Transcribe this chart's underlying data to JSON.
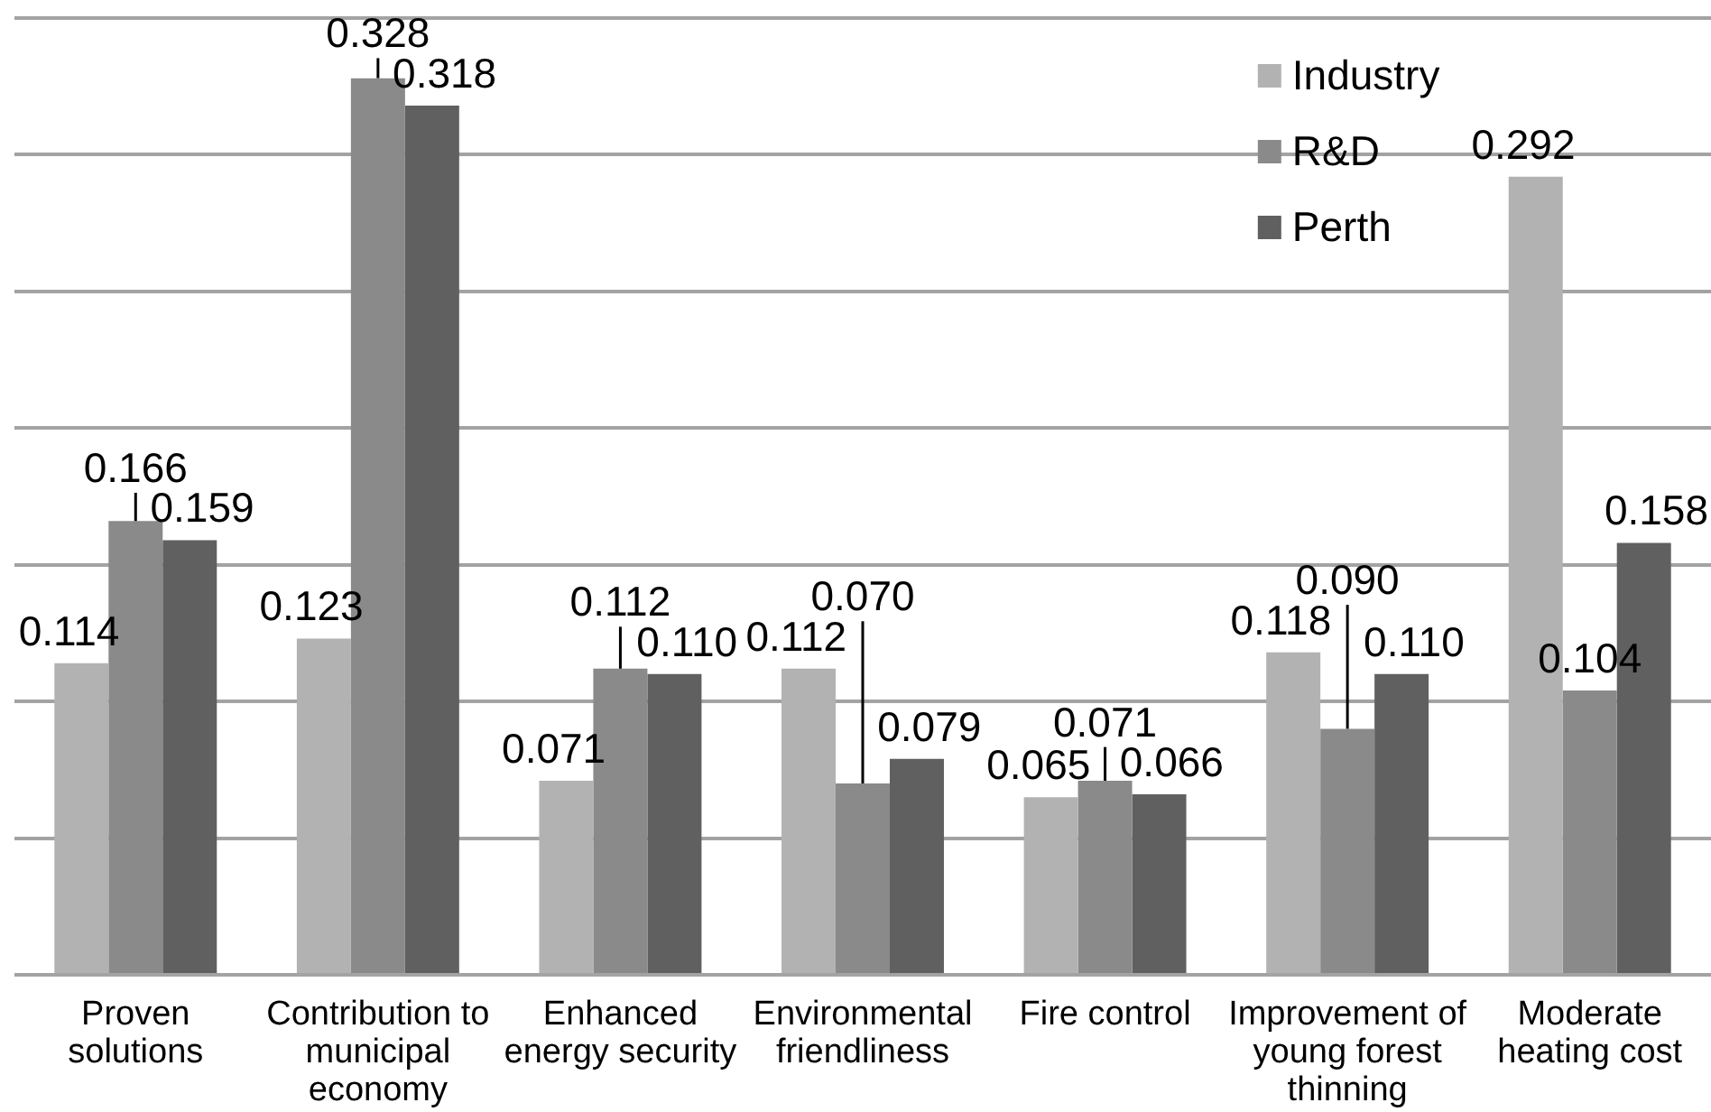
{
  "chart_data": {
    "type": "bar",
    "categories": [
      "Proven solutions",
      "Contribution to municipal economy",
      "Enhanced energy security",
      "Environmental friendliness",
      "Fire control",
      "Improvement of young forest thinning",
      "Moderate heating cost"
    ],
    "series": [
      {
        "name": "Industry",
        "color": "#b2b2b2",
        "values": [
          0.114,
          0.123,
          0.071,
          0.112,
          0.065,
          0.118,
          0.292
        ],
        "value_labels": [
          "0.114",
          "0.123",
          "0.071",
          "0.112",
          "0.065",
          "0.118",
          "0.292"
        ]
      },
      {
        "name": "R&D",
        "color": "#8a8a8a",
        "values": [
          0.166,
          0.328,
          0.112,
          0.07,
          0.071,
          0.09,
          0.104
        ],
        "value_labels": [
          "0.166",
          "0.328",
          "0.112",
          "0.070",
          "0.071",
          "0.090",
          "0.104"
        ]
      },
      {
        "name": "Perth",
        "color": "#606060",
        "values": [
          0.159,
          0.318,
          0.11,
          0.079,
          0.066,
          0.11,
          0.158
        ],
        "value_labels": [
          "0.159",
          "0.318",
          "0.110",
          "0.079",
          "0.066",
          "0.110",
          "0.158"
        ]
      }
    ],
    "ylim": [
      0,
      0.35
    ],
    "yticks": [
      {
        "value": 0,
        "label": null
      },
      {
        "value": 0.05,
        "label": null
      },
      {
        "value": 0.1,
        "label": null
      },
      {
        "value": 0.15,
        "label": null
      },
      {
        "value": 0.2,
        "label": null
      },
      {
        "value": 0.25,
        "label": null
      },
      {
        "value": 0.3,
        "label": null
      },
      {
        "value": 0.35,
        "label": null
      }
    ],
    "grid": "y",
    "legend": "top right",
    "tick_labels": "x"
  }
}
